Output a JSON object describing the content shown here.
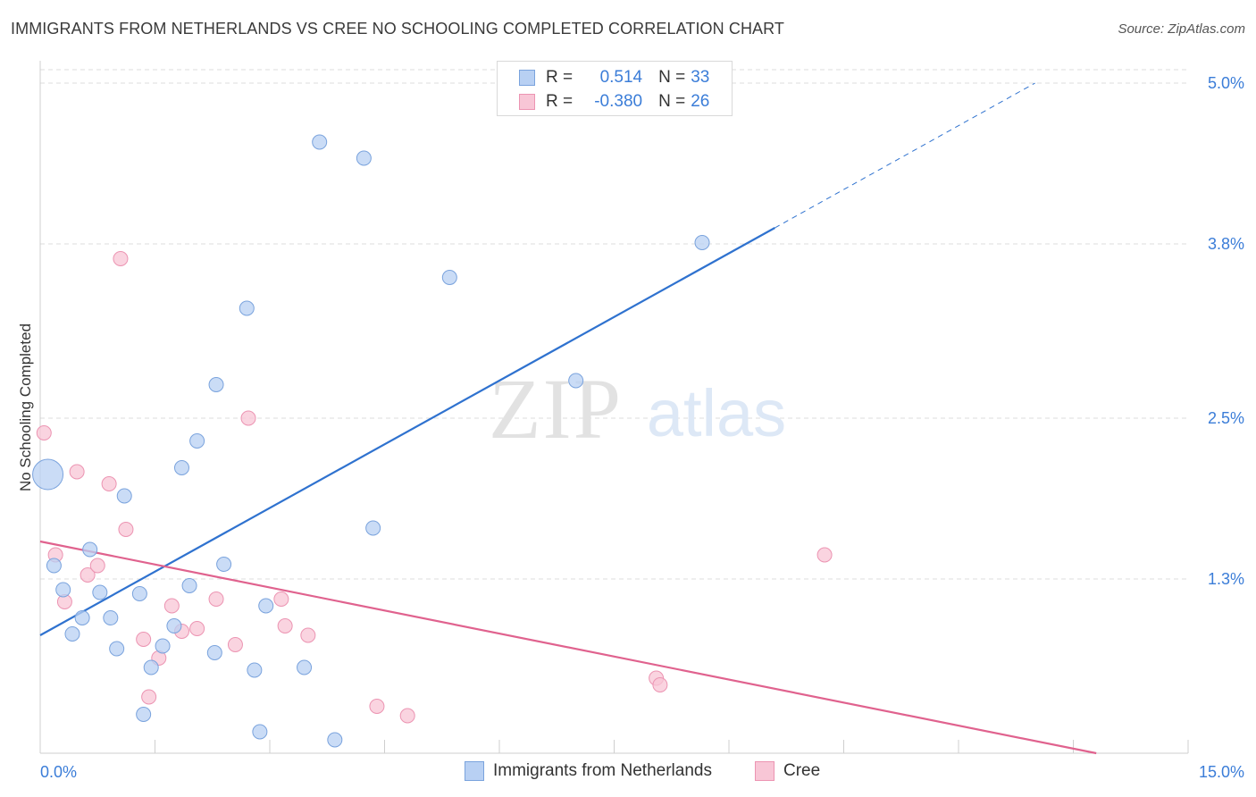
{
  "header": {
    "title": "IMMIGRANTS FROM NETHERLANDS VS CREE NO SCHOOLING COMPLETED CORRELATION CHART",
    "source": "Source: ZipAtlas.com"
  },
  "watermark": {
    "zip": "ZIP",
    "atlas": "atlas"
  },
  "legend": {
    "r_label": "R =",
    "n_label": "N =",
    "series1": {
      "r": "0.514",
      "n": "33"
    },
    "series2": {
      "r": "-0.380",
      "n": "26"
    }
  },
  "colors": {
    "blue_fill": "#b8d0f3",
    "blue_stroke": "#7aa3dd",
    "blue_line": "#2f72cf",
    "pink_fill": "#f8c6d6",
    "pink_stroke": "#ec94b2",
    "pink_line": "#e0628e",
    "axis_text": "#3b7dd8",
    "grid": "#dcdcdc"
  },
  "chart_data": {
    "type": "scatter",
    "title": "IMMIGRANTS FROM NETHERLANDS VS CREE NO SCHOOLING COMPLETED CORRELATION CHART",
    "xlabel": "",
    "ylabel": "No Schooling Completed",
    "xlim": [
      0,
      15
    ],
    "ylim": [
      0,
      5.1
    ],
    "x_tick_labels": [
      "0.0%",
      "15.0%"
    ],
    "y_ticks": [
      1.3,
      2.5,
      3.8,
      5.0
    ],
    "y_tick_labels": [
      "1.3%",
      "2.5%",
      "3.8%",
      "5.0%"
    ],
    "grid": true,
    "legend_position": "bottom",
    "series": [
      {
        "name": "Immigrants from Netherlands",
        "color": "#b8d0f3",
        "trend": {
          "x": [
            0.0,
            9.6
          ],
          "y": [
            0.88,
            3.92
          ],
          "dashed_to": [
            13.0,
            5.0
          ]
        },
        "points": [
          {
            "x": 0.1,
            "y": 2.08,
            "big": true
          },
          {
            "x": 0.18,
            "y": 1.4
          },
          {
            "x": 0.3,
            "y": 1.22
          },
          {
            "x": 0.42,
            "y": 0.89
          },
          {
            "x": 0.55,
            "y": 1.01
          },
          {
            "x": 0.65,
            "y": 1.52
          },
          {
            "x": 0.78,
            "y": 1.2
          },
          {
            "x": 0.92,
            "y": 1.01
          },
          {
            "x": 1.0,
            "y": 0.78
          },
          {
            "x": 1.1,
            "y": 1.92
          },
          {
            "x": 1.3,
            "y": 1.19
          },
          {
            "x": 1.35,
            "y": 0.29
          },
          {
            "x": 1.45,
            "y": 0.64
          },
          {
            "x": 1.6,
            "y": 0.8
          },
          {
            "x": 1.75,
            "y": 0.95
          },
          {
            "x": 1.85,
            "y": 2.13
          },
          {
            "x": 1.95,
            "y": 1.25
          },
          {
            "x": 2.05,
            "y": 2.33
          },
          {
            "x": 2.3,
            "y": 2.75
          },
          {
            "x": 2.28,
            "y": 0.75
          },
          {
            "x": 2.4,
            "y": 1.41
          },
          {
            "x": 2.7,
            "y": 3.32
          },
          {
            "x": 2.8,
            "y": 0.62
          },
          {
            "x": 2.87,
            "y": 0.16
          },
          {
            "x": 2.95,
            "y": 1.1
          },
          {
            "x": 3.45,
            "y": 0.64
          },
          {
            "x": 3.65,
            "y": 4.56
          },
          {
            "x": 3.85,
            "y": 0.1
          },
          {
            "x": 4.23,
            "y": 4.44
          },
          {
            "x": 4.35,
            "y": 1.68
          },
          {
            "x": 5.35,
            "y": 3.55
          },
          {
            "x": 7.0,
            "y": 2.78
          },
          {
            "x": 8.65,
            "y": 3.81
          }
        ]
      },
      {
        "name": "Cree",
        "color": "#f8c6d6",
        "trend": {
          "x": [
            0.0,
            13.8
          ],
          "y": [
            1.58,
            0.0
          ]
        },
        "points": [
          {
            "x": 0.05,
            "y": 2.39
          },
          {
            "x": 0.2,
            "y": 1.48
          },
          {
            "x": 0.32,
            "y": 1.13
          },
          {
            "x": 0.48,
            "y": 2.1
          },
          {
            "x": 0.62,
            "y": 1.33
          },
          {
            "x": 0.75,
            "y": 1.4
          },
          {
            "x": 0.9,
            "y": 2.01
          },
          {
            "x": 1.05,
            "y": 3.69
          },
          {
            "x": 1.12,
            "y": 1.67
          },
          {
            "x": 1.35,
            "y": 0.85
          },
          {
            "x": 1.42,
            "y": 0.42
          },
          {
            "x": 1.55,
            "y": 0.71
          },
          {
            "x": 1.72,
            "y": 1.1
          },
          {
            "x": 1.85,
            "y": 0.91
          },
          {
            "x": 2.05,
            "y": 0.93
          },
          {
            "x": 2.3,
            "y": 1.15
          },
          {
            "x": 2.55,
            "y": 0.81
          },
          {
            "x": 2.72,
            "y": 2.5
          },
          {
            "x": 3.15,
            "y": 1.15
          },
          {
            "x": 3.2,
            "y": 0.95
          },
          {
            "x": 3.5,
            "y": 0.88
          },
          {
            "x": 4.4,
            "y": 0.35
          },
          {
            "x": 4.8,
            "y": 0.28
          },
          {
            "x": 8.05,
            "y": 0.56
          },
          {
            "x": 8.1,
            "y": 0.51
          },
          {
            "x": 10.25,
            "y": 1.48
          }
        ]
      }
    ]
  }
}
